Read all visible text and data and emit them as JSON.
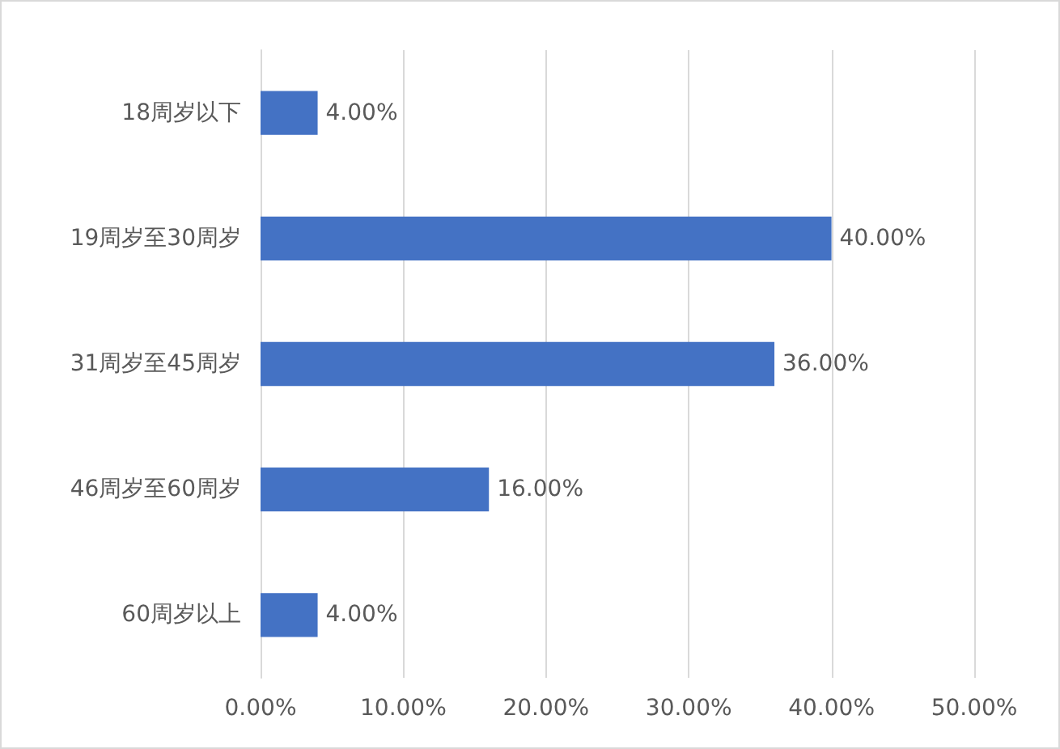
{
  "chart_data": {
    "type": "bar",
    "orientation": "horizontal",
    "categories": [
      "18周岁以下",
      "19周岁至30周岁",
      "31周岁至45周岁",
      "46周岁至60周岁",
      "60周岁以上"
    ],
    "values": [
      4,
      40,
      36,
      16,
      4
    ],
    "value_labels": [
      "4.00%",
      "40.00%",
      "36.00%",
      "16.00%",
      "4.00%"
    ],
    "color": "#4472c4",
    "xlim": [
      0,
      50
    ],
    "xticks": [
      {
        "value": 0,
        "label": "0.00%"
      },
      {
        "value": 10,
        "label": "10.00%"
      },
      {
        "value": 20,
        "label": "20.00%"
      },
      {
        "value": 30,
        "label": "30.00%"
      },
      {
        "value": 40,
        "label": "40.00%"
      },
      {
        "value": 50,
        "label": "50.00%"
      }
    ],
    "grid": "x"
  }
}
